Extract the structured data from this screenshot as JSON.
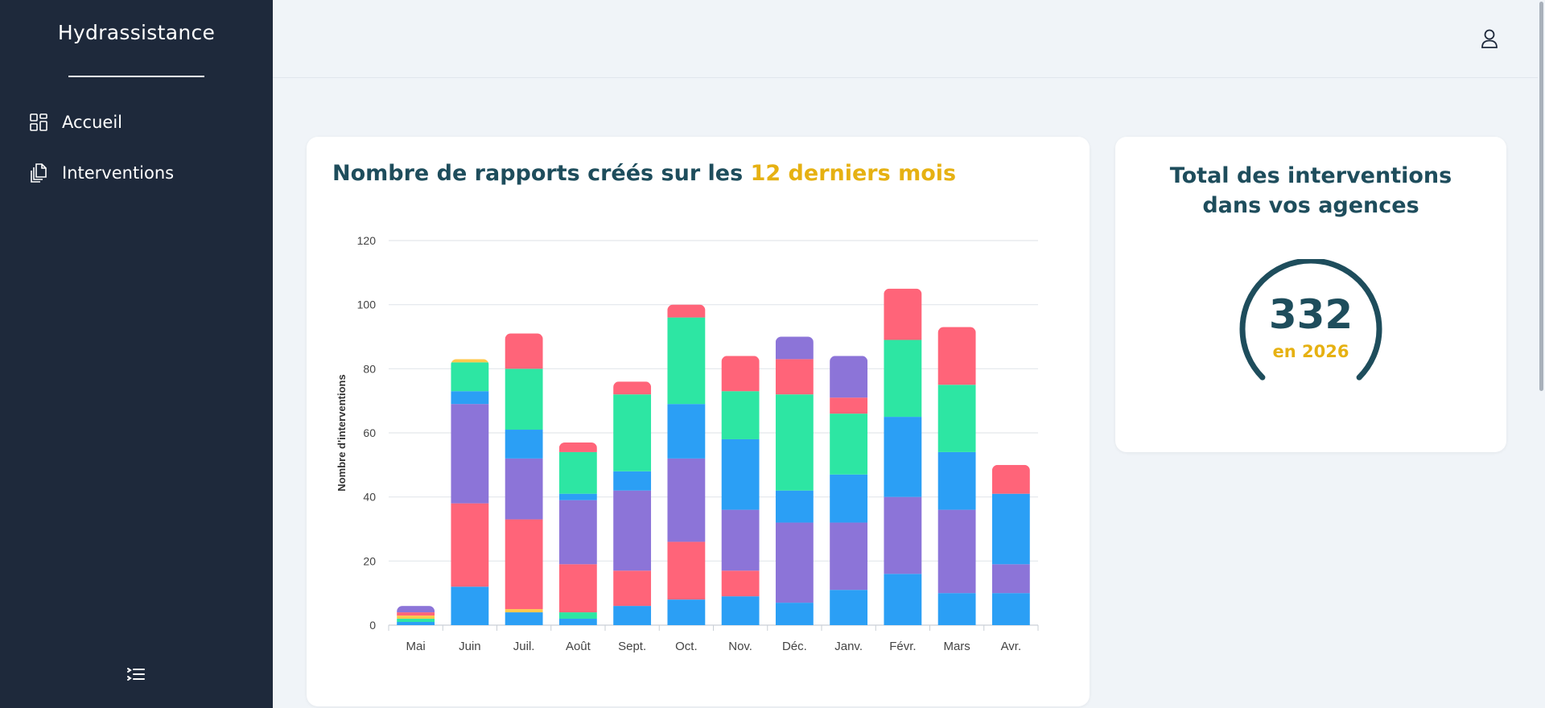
{
  "sidebar": {
    "brand": "Hydrassistance",
    "items": [
      {
        "label": "Accueil",
        "icon": "dashboard-icon"
      },
      {
        "label": "Interventions",
        "icon": "documents-icon"
      }
    ],
    "collapse_icon": "list-collapse-icon"
  },
  "header": {
    "user_icon": "user-icon"
  },
  "main": {
    "chart_card": {
      "title_prefix": "Nombre de rapports créés sur les ",
      "title_highlight": "12 derniers mois"
    },
    "total_card": {
      "title": "Total des interventions dans vos agences",
      "value": "332",
      "subtitle": "en 2026"
    }
  },
  "colors": {
    "sidebar_bg": "#1e293b",
    "accent_teal": "#1e4d5c",
    "accent_gold": "#e6b112",
    "bar_blue": "#2b9ff5",
    "bar_purple": "#8c74d8",
    "bar_red": "#ff6479",
    "bar_green": "#2de6a3",
    "bar_yellow": "#ffc94d"
  },
  "chart_data": {
    "type": "bar",
    "stacked": true,
    "ylabel": "Nombre d'interventions",
    "xlabel": "",
    "ylim": [
      0,
      120
    ],
    "yticks": [
      0,
      20,
      40,
      60,
      80,
      100,
      120
    ],
    "grid": true,
    "categories": [
      "Mai",
      "Juin",
      "Juil.",
      "Août",
      "Sept.",
      "Oct.",
      "Nov.",
      "Déc.",
      "Janv.",
      "Févr.",
      "Mars",
      "Avr."
    ],
    "segments": [
      [
        {
          "v": 1,
          "c": "#2b9ff5"
        },
        {
          "v": 1,
          "c": "#2de6a3"
        },
        {
          "v": 1,
          "c": "#ffc94d"
        },
        {
          "v": 1,
          "c": "#ff6479"
        },
        {
          "v": 2,
          "c": "#8c74d8"
        }
      ],
      [
        {
          "v": 12,
          "c": "#2b9ff5"
        },
        {
          "v": 26,
          "c": "#ff6479"
        },
        {
          "v": 31,
          "c": "#8c74d8"
        },
        {
          "v": 4,
          "c": "#2b9ff5"
        },
        {
          "v": 9,
          "c": "#2de6a3"
        },
        {
          "v": 1,
          "c": "#ffc94d"
        }
      ],
      [
        {
          "v": 4,
          "c": "#2b9ff5"
        },
        {
          "v": 1,
          "c": "#ffc94d"
        },
        {
          "v": 28,
          "c": "#ff6479"
        },
        {
          "v": 19,
          "c": "#8c74d8"
        },
        {
          "v": 9,
          "c": "#2b9ff5"
        },
        {
          "v": 19,
          "c": "#2de6a3"
        },
        {
          "v": 11,
          "c": "#ff6479"
        }
      ],
      [
        {
          "v": 2,
          "c": "#2b9ff5"
        },
        {
          "v": 2,
          "c": "#2de6a3"
        },
        {
          "v": 15,
          "c": "#ff6479"
        },
        {
          "v": 20,
          "c": "#8c74d8"
        },
        {
          "v": 2,
          "c": "#2b9ff5"
        },
        {
          "v": 13,
          "c": "#2de6a3"
        },
        {
          "v": 3,
          "c": "#ff6479"
        }
      ],
      [
        {
          "v": 6,
          "c": "#2b9ff5"
        },
        {
          "v": 11,
          "c": "#ff6479"
        },
        {
          "v": 25,
          "c": "#8c74d8"
        },
        {
          "v": 6,
          "c": "#2b9ff5"
        },
        {
          "v": 24,
          "c": "#2de6a3"
        },
        {
          "v": 4,
          "c": "#ff6479"
        }
      ],
      [
        {
          "v": 8,
          "c": "#2b9ff5"
        },
        {
          "v": 18,
          "c": "#ff6479"
        },
        {
          "v": 26,
          "c": "#8c74d8"
        },
        {
          "v": 17,
          "c": "#2b9ff5"
        },
        {
          "v": 27,
          "c": "#2de6a3"
        },
        {
          "v": 4,
          "c": "#ff6479"
        }
      ],
      [
        {
          "v": 9,
          "c": "#2b9ff5"
        },
        {
          "v": 8,
          "c": "#ff6479"
        },
        {
          "v": 19,
          "c": "#8c74d8"
        },
        {
          "v": 22,
          "c": "#2b9ff5"
        },
        {
          "v": 15,
          "c": "#2de6a3"
        },
        {
          "v": 11,
          "c": "#ff6479"
        }
      ],
      [
        {
          "v": 7,
          "c": "#2b9ff5"
        },
        {
          "v": 25,
          "c": "#8c74d8"
        },
        {
          "v": 10,
          "c": "#2b9ff5"
        },
        {
          "v": 30,
          "c": "#2de6a3"
        },
        {
          "v": 11,
          "c": "#ff6479"
        },
        {
          "v": 7,
          "c": "#8c74d8"
        }
      ],
      [
        {
          "v": 11,
          "c": "#2b9ff5"
        },
        {
          "v": 21,
          "c": "#8c74d8"
        },
        {
          "v": 15,
          "c": "#2b9ff5"
        },
        {
          "v": 19,
          "c": "#2de6a3"
        },
        {
          "v": 5,
          "c": "#ff6479"
        },
        {
          "v": 13,
          "c": "#8c74d8"
        }
      ],
      [
        {
          "v": 16,
          "c": "#2b9ff5"
        },
        {
          "v": 24,
          "c": "#8c74d8"
        },
        {
          "v": 25,
          "c": "#2b9ff5"
        },
        {
          "v": 24,
          "c": "#2de6a3"
        },
        {
          "v": 16,
          "c": "#ff6479"
        }
      ],
      [
        {
          "v": 10,
          "c": "#2b9ff5"
        },
        {
          "v": 26,
          "c": "#8c74d8"
        },
        {
          "v": 18,
          "c": "#2b9ff5"
        },
        {
          "v": 21,
          "c": "#2de6a3"
        },
        {
          "v": 18,
          "c": "#ff6479"
        }
      ],
      [
        {
          "v": 10,
          "c": "#2b9ff5"
        },
        {
          "v": 9,
          "c": "#8c74d8"
        },
        {
          "v": 22,
          "c": "#2b9ff5"
        },
        {
          "v": 9,
          "c": "#ff6479"
        }
      ]
    ],
    "totals": [
      6,
      83,
      91,
      57,
      76,
      100,
      84,
      90,
      84,
      105,
      93,
      50
    ]
  },
  "gauge": {
    "fill_fraction": 1.0
  }
}
